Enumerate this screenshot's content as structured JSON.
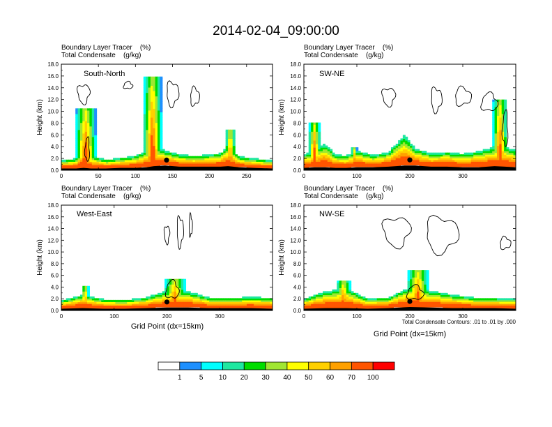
{
  "figure": {
    "title": "2014-02-04_09:00:00"
  },
  "chart_data": [
    {
      "type": "heatmap",
      "panel_label": "South-North",
      "subtitle_line1": "Boundary Layer Tracer    (%)",
      "subtitle_line2": "Total Condensate    (g/kg)",
      "ylabel": "Height (km)",
      "xlabel": "",
      "xlim": [
        0,
        285
      ],
      "ylim": [
        0,
        18
      ],
      "x_ticks": [
        0,
        50,
        100,
        150,
        200,
        250
      ],
      "y_ticks": [
        "0.0",
        "2.0",
        "4.0",
        "6.0",
        "8.0",
        "10.0",
        "12.0",
        "14.0",
        "16.0",
        "18.0"
      ],
      "marker_x": 142,
      "surface_x": [
        0,
        20,
        30,
        40,
        60,
        80,
        100,
        115,
        125,
        140,
        160,
        180,
        200,
        215,
        225,
        240,
        260,
        285
      ],
      "surface_height": [
        0.3,
        0.3,
        0.4,
        0.3,
        0.3,
        0.4,
        0.4,
        0.5,
        0.7,
        0.8,
        0.6,
        0.6,
        0.6,
        0.6,
        0.7,
        0.5,
        0.4,
        0.3
      ],
      "bl_depth": [
        1.2,
        1.5,
        3.0,
        2.0,
        1.3,
        1.5,
        1.8,
        2.5,
        3.0,
        2.2,
        1.8,
        1.6,
        1.8,
        2.0,
        3.0,
        1.6,
        1.4,
        1.2
      ],
      "plumes": [
        {
          "x": 33,
          "top": 10.5,
          "halfwidth": 10
        },
        {
          "x": 123,
          "top": 16.0,
          "halfwidth": 9
        },
        {
          "x": 228,
          "top": 7.0,
          "halfwidth": 5
        }
      ],
      "contour_blobs": [
        {
          "x": 30,
          "y": 13.0,
          "rx": 8,
          "ry": 1.6
        },
        {
          "x": 150,
          "y": 13.0,
          "rx": 8,
          "ry": 2.0
        },
        {
          "x": 180,
          "y": 12.5,
          "rx": 6,
          "ry": 1.5
        },
        {
          "x": 90,
          "y": 14.4,
          "rx": 6,
          "ry": 0.6
        },
        {
          "x": 35,
          "y": 3.5,
          "rx": 3,
          "ry": 2.0
        }
      ]
    },
    {
      "type": "heatmap",
      "panel_label": "SW-NE",
      "subtitle_line1": "Boundary Layer Tracer    (%)",
      "subtitle_line2": "Total Condensate    (g/kg)",
      "ylabel": "Height (km)",
      "xlabel": "",
      "xlim": [
        0,
        400
      ],
      "ylim": [
        0,
        18
      ],
      "x_ticks": [
        0,
        100,
        200,
        300
      ],
      "y_ticks": [
        "0.0",
        "2.0",
        "4.0",
        "6.0",
        "8.0",
        "10.0",
        "12.0",
        "14.0",
        "16.0",
        "18.0"
      ],
      "marker_x": 200,
      "surface_x": [
        0,
        20,
        40,
        60,
        80,
        100,
        130,
        160,
        190,
        210,
        240,
        270,
        300,
        330,
        360,
        380,
        400
      ],
      "surface_height": [
        0.4,
        0.5,
        0.5,
        0.4,
        0.4,
        0.5,
        0.5,
        0.6,
        0.8,
        0.8,
        0.6,
        0.6,
        0.5,
        0.5,
        0.7,
        0.6,
        0.5
      ],
      "bl_depth": [
        2.0,
        2.5,
        3.5,
        2.0,
        1.8,
        2.5,
        1.8,
        2.2,
        4.5,
        2.5,
        2.0,
        2.2,
        2.0,
        2.4,
        2.8,
        3.0,
        2.5
      ],
      "plumes": [
        {
          "x": 20,
          "top": 8.0,
          "halfwidth": 8
        },
        {
          "x": 95,
          "top": 4.0,
          "halfwidth": 4
        },
        {
          "x": 370,
          "top": 12.0,
          "halfwidth": 10
        }
      ],
      "contour_blobs": [
        {
          "x": 160,
          "y": 12.5,
          "rx": 12,
          "ry": 1.5
        },
        {
          "x": 250,
          "y": 12.0,
          "rx": 10,
          "ry": 2.0
        },
        {
          "x": 300,
          "y": 12.5,
          "rx": 15,
          "ry": 1.5
        },
        {
          "x": 350,
          "y": 11.5,
          "rx": 15,
          "ry": 1.5
        },
        {
          "x": 380,
          "y": 7.0,
          "rx": 5,
          "ry": 3.0
        }
      ]
    },
    {
      "type": "heatmap",
      "panel_label": "West-East",
      "subtitle_line1": "Boundary Layer Tracer    (%)",
      "subtitle_line2": "Total Condensate    (g/kg)",
      "ylabel": "Height (km)",
      "xlabel": "Grid Point (dx=15km)",
      "xlim": [
        0,
        400
      ],
      "ylim": [
        0,
        18
      ],
      "x_ticks": [
        0,
        100,
        200,
        300
      ],
      "y_ticks": [
        "0.0",
        "2.0",
        "4.0",
        "6.0",
        "8.0",
        "10.0",
        "12.0",
        "14.0",
        "16.0",
        "18.0"
      ],
      "marker_x": 200,
      "surface_x": [
        0,
        40,
        80,
        120,
        160,
        200,
        240,
        280,
        320,
        360,
        400
      ],
      "surface_height": [
        0.3,
        0.4,
        0.3,
        0.3,
        0.4,
        0.5,
        0.5,
        0.4,
        0.4,
        0.4,
        0.3
      ],
      "bl_depth": [
        1.2,
        2.0,
        1.4,
        1.3,
        1.6,
        2.5,
        2.4,
        1.6,
        1.5,
        1.7,
        1.6
      ],
      "plumes": [
        {
          "x": 45,
          "top": 4.2,
          "halfwidth": 5
        },
        {
          "x": 215,
          "top": 5.5,
          "halfwidth": 15
        }
      ],
      "contour_blobs": [
        {
          "x": 200,
          "y": 13.0,
          "rx": 5,
          "ry": 1.5
        },
        {
          "x": 225,
          "y": 13.5,
          "rx": 6,
          "ry": 2.5
        },
        {
          "x": 245,
          "y": 14.5,
          "rx": 3,
          "ry": 1.8
        },
        {
          "x": 210,
          "y": 3.5,
          "rx": 12,
          "ry": 1.5
        }
      ]
    },
    {
      "type": "heatmap",
      "panel_label": "NW-SE",
      "subtitle_line1": "Boundary Layer Tracer    (%)",
      "subtitle_line2": "Total Condensate    (g/kg)",
      "ylabel": "Height (km)",
      "xlabel": "Grid Point (dx=15km)",
      "xlim": [
        0,
        400
      ],
      "ylim": [
        0,
        18
      ],
      "x_ticks": [
        0,
        100,
        200,
        300
      ],
      "y_ticks": [
        "0.0",
        "2.0",
        "4.0",
        "6.0",
        "8.0",
        "10.0",
        "12.0",
        "14.0",
        "16.0",
        "18.0"
      ],
      "marker_x": 200,
      "surface_x": [
        0,
        40,
        80,
        120,
        160,
        200,
        240,
        280,
        320,
        360,
        400
      ],
      "surface_height": [
        0.3,
        0.4,
        0.4,
        0.3,
        0.4,
        0.6,
        0.5,
        0.4,
        0.4,
        0.4,
        0.3
      ],
      "bl_depth": [
        1.5,
        2.5,
        3.0,
        1.5,
        1.6,
        3.0,
        2.5,
        2.0,
        1.6,
        1.5,
        1.5
      ],
      "plumes": [
        {
          "x": 75,
          "top": 5.0,
          "halfwidth": 10
        },
        {
          "x": 215,
          "top": 7.0,
          "halfwidth": 15
        }
      ],
      "contour_blobs": [
        {
          "x": 175,
          "y": 13.5,
          "rx": 25,
          "ry": 2.5
        },
        {
          "x": 260,
          "y": 13.0,
          "rx": 30,
          "ry": 3.0
        },
        {
          "x": 380,
          "y": 11.5,
          "rx": 10,
          "ry": 1.0
        },
        {
          "x": 210,
          "y": 3.0,
          "rx": 15,
          "ry": 1.2
        }
      ],
      "contour_note": "Total Condensate Contours: .01 to .01 by .000"
    }
  ],
  "colorbar": {
    "labels": [
      "1",
      "5",
      "10",
      "20",
      "30",
      "40",
      "50",
      "60",
      "70",
      "100"
    ],
    "colors": [
      "#ffffff",
      "#1e90ff",
      "#00ffff",
      "#1ee8a0",
      "#00dd00",
      "#a0e632",
      "#ffff00",
      "#ffd000",
      "#ffa000",
      "#ff5500",
      "#ff0000"
    ]
  }
}
